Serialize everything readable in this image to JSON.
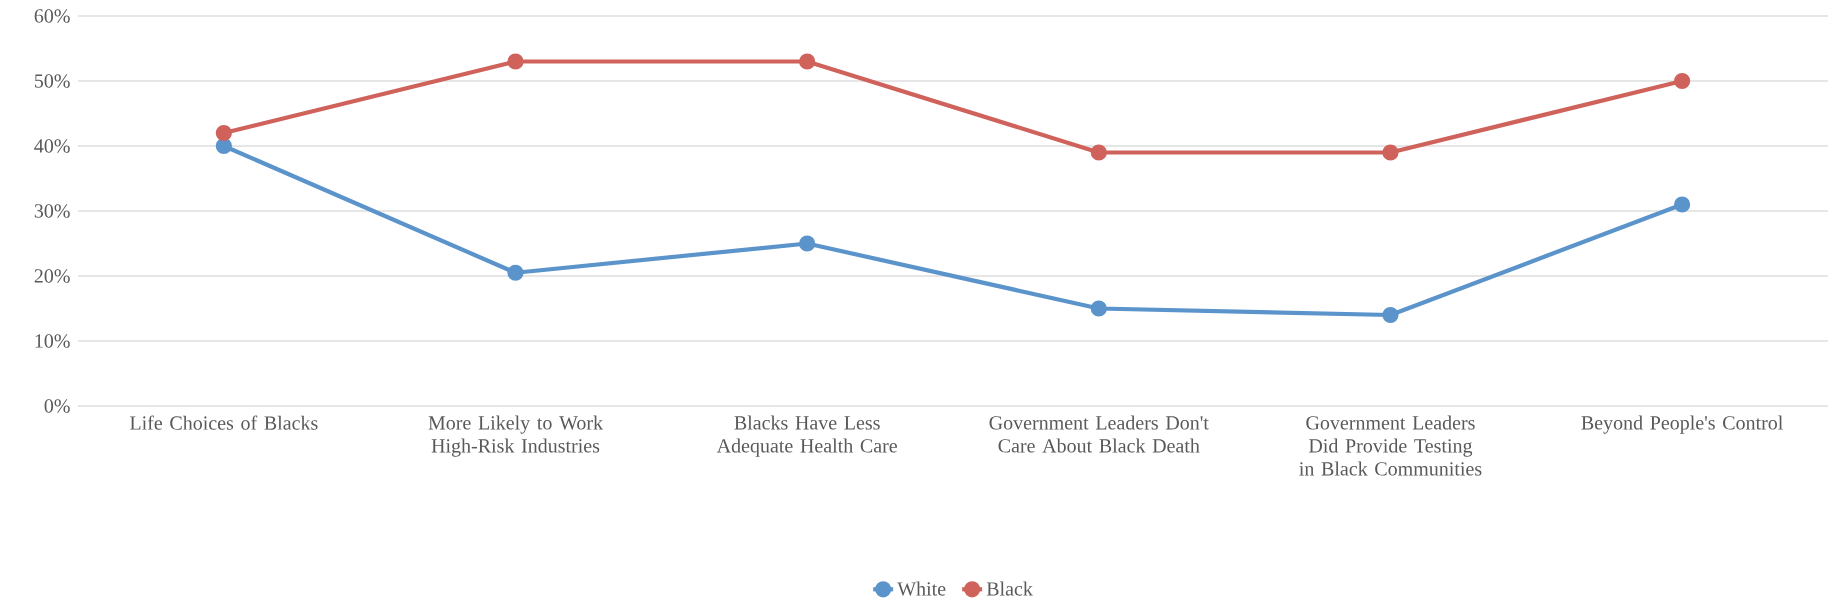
{
  "chart_data": {
    "type": "line",
    "categories": [
      "Life Choices of Blacks",
      "More Likely to Work High-Risk Industries",
      "Blacks Have Less Adequate Health Care",
      "Government Leaders Don't Care About Black Death",
      "Government Leaders Did Provide Testing in Black Communities",
      "Beyond People's Control"
    ],
    "series": [
      {
        "name": "White",
        "color": "#5b93cb",
        "values": [
          40,
          20.5,
          25,
          15,
          14,
          31
        ]
      },
      {
        "name": "Black",
        "color": "#cf625b",
        "values": [
          42,
          53,
          53,
          39,
          39,
          50
        ]
      }
    ],
    "ylim": [
      0,
      60
    ],
    "yticks": [
      {
        "value": 0,
        "label": "0%"
      },
      {
        "value": 10,
        "label": "10%"
      },
      {
        "value": 20,
        "label": "20%"
      },
      {
        "value": 30,
        "label": "30%"
      },
      {
        "value": 40,
        "label": "40%"
      },
      {
        "value": 50,
        "label": "50%"
      },
      {
        "value": 60,
        "label": "60%"
      }
    ],
    "grid": "y",
    "legend": "bottom",
    "marker": "circle",
    "line_style": "solid"
  }
}
